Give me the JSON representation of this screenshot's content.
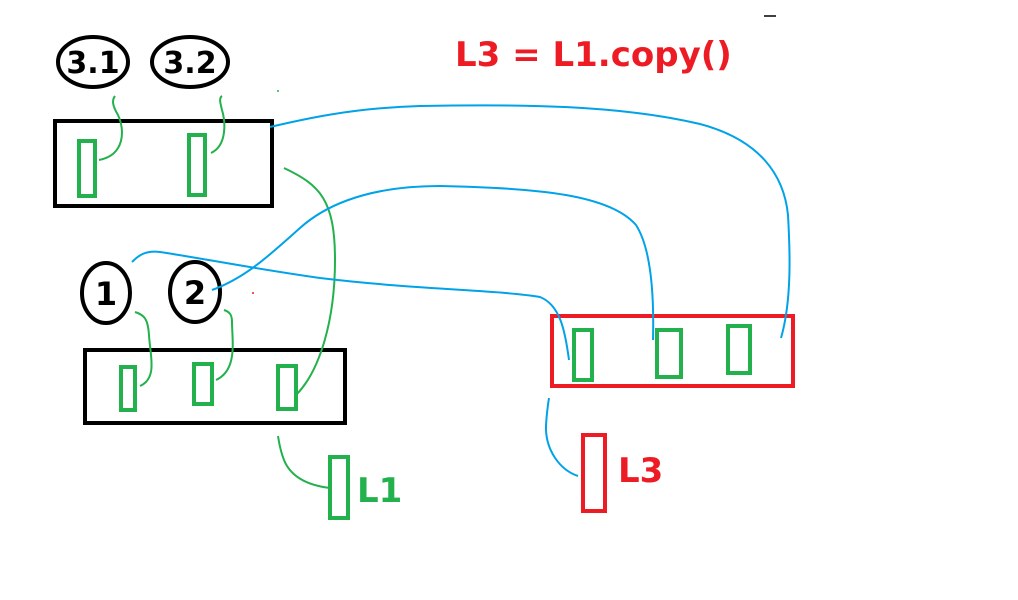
{
  "title": "L3 = L1.copy()",
  "outer_list": {
    "label": "L1",
    "element_labels": [
      "1",
      "2"
    ]
  },
  "inner_list": {
    "element_labels": [
      "3.1",
      "3.2"
    ]
  },
  "copy_list": {
    "label": "L3"
  },
  "colors": {
    "ink": "#000000",
    "list_cell": "#22b14c",
    "copy_box": "#ed1c24",
    "reference_line": "#00a2e8",
    "title": "#ed1c24",
    "label_l1": "#22b14c",
    "label_l3": "#ed1c24"
  }
}
